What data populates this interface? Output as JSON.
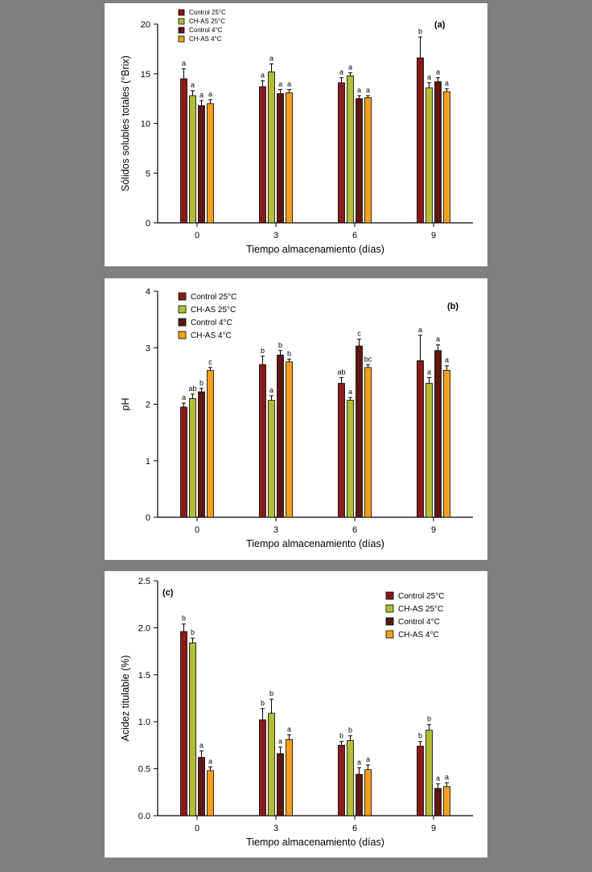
{
  "page": {
    "background": "#7f7f7f",
    "panel_background": "#ffffff"
  },
  "colors": {
    "control25": "#8B1A1A",
    "chas25": "#B5BC38",
    "control4": "#5E1712",
    "chas4": "#F4A01F"
  },
  "chart_data": [
    {
      "id": "a",
      "type": "bar",
      "panel_label": "(a)",
      "legend_position": "top-left",
      "title": "",
      "xlabel": "Tiempo almacenamiento (días)",
      "ylabel": "Sólidos solubles totales (°Brix)",
      "ylim": [
        0,
        20
      ],
      "yticks": [
        0,
        5,
        10,
        15,
        20
      ],
      "ytick_labels": [
        "0",
        "5",
        "10",
        "15",
        "20"
      ],
      "categories": [
        "0",
        "3",
        "6",
        "9"
      ],
      "grid": false,
      "series": [
        {
          "name": "Control 25°C",
          "color_key": "control25",
          "values": [
            14.5,
            13.7,
            14.1,
            16.6
          ],
          "errors": [
            1.0,
            0.6,
            0.5,
            2.1
          ],
          "letters": [
            "a",
            "a",
            "a",
            "b"
          ]
        },
        {
          "name": "CH-AS 25°C",
          "color_key": "chas25",
          "values": [
            12.8,
            15.2,
            14.8,
            13.6
          ],
          "errors": [
            0.5,
            0.8,
            0.3,
            0.5
          ],
          "letters": [
            "a",
            "a",
            "a",
            "a"
          ]
        },
        {
          "name": "Control 4°C",
          "color_key": "control4",
          "values": [
            11.8,
            13.0,
            12.5,
            14.2
          ],
          "errors": [
            0.5,
            0.4,
            0.3,
            0.4
          ],
          "letters": [
            "a",
            "a",
            "a",
            "a"
          ]
        },
        {
          "name": "CH-AS 4°C",
          "color_key": "chas4",
          "values": [
            12.0,
            13.1,
            12.6,
            13.2
          ],
          "errors": [
            0.4,
            0.3,
            0.2,
            0.3
          ],
          "letters": [
            "a",
            "a",
            "a",
            "a"
          ]
        }
      ]
    },
    {
      "id": "b",
      "type": "bar",
      "panel_label": "(b)",
      "legend_position": "top-left",
      "title": "",
      "xlabel": "Tiempo almacenamiento (días)",
      "ylabel": "pH",
      "ylim": [
        0,
        4
      ],
      "yticks": [
        0,
        1,
        2,
        3,
        4
      ],
      "ytick_labels": [
        "0",
        "1",
        "2",
        "3",
        "4"
      ],
      "categories": [
        "0",
        "3",
        "6",
        "9"
      ],
      "grid": false,
      "series": [
        {
          "name": "Control 25°C",
          "color_key": "control25",
          "values": [
            1.95,
            2.7,
            2.37,
            2.77
          ],
          "errors": [
            0.07,
            0.15,
            0.1,
            0.45
          ],
          "letters": [
            "a",
            "b",
            "ab",
            "a"
          ]
        },
        {
          "name": "CH-AS 25°C",
          "color_key": "chas25",
          "values": [
            2.1,
            2.07,
            2.07,
            2.37
          ],
          "errors": [
            0.08,
            0.08,
            0.05,
            0.1
          ],
          "letters": [
            "ab",
            "a",
            "a",
            "a"
          ]
        },
        {
          "name": "Control 4°C",
          "color_key": "control4",
          "values": [
            2.22,
            2.87,
            3.03,
            2.95
          ],
          "errors": [
            0.06,
            0.08,
            0.12,
            0.1
          ],
          "letters": [
            "b",
            "b",
            "c",
            "a"
          ]
        },
        {
          "name": "CH-AS 4°C",
          "color_key": "chas4",
          "values": [
            2.6,
            2.75,
            2.65,
            2.6
          ],
          "errors": [
            0.05,
            0.05,
            0.05,
            0.08
          ],
          "letters": [
            "c",
            "b",
            "bc",
            "a"
          ]
        }
      ]
    },
    {
      "id": "c",
      "type": "bar",
      "panel_label": "(c)",
      "legend_position": "top-right",
      "title": "",
      "xlabel": "Tiempo almacenamiento (días)",
      "ylabel": "Acidez titulable (%)",
      "ylim": [
        0,
        2.5
      ],
      "yticks": [
        0,
        0.5,
        1.0,
        1.5,
        2.0,
        2.5
      ],
      "ytick_labels": [
        "0.0",
        "0.5",
        "1.0",
        "1.5",
        "2.0",
        "2.5"
      ],
      "categories": [
        "0",
        "3",
        "6",
        "9"
      ],
      "grid": false,
      "series": [
        {
          "name": "Control 25°C",
          "color_key": "control25",
          "values": [
            1.96,
            1.02,
            0.75,
            0.74
          ],
          "errors": [
            0.08,
            0.12,
            0.04,
            0.05
          ],
          "letters": [
            "b",
            "b",
            "b",
            "b"
          ]
        },
        {
          "name": "CH-AS 25°C",
          "color_key": "chas25",
          "values": [
            1.84,
            1.09,
            0.8,
            0.91
          ],
          "errors": [
            0.05,
            0.15,
            0.05,
            0.06
          ],
          "letters": [
            "b",
            "b",
            "b",
            "b"
          ]
        },
        {
          "name": "Control 4°C",
          "color_key": "control4",
          "values": [
            0.62,
            0.66,
            0.44,
            0.29
          ],
          "errors": [
            0.07,
            0.07,
            0.07,
            0.05
          ],
          "letters": [
            "a",
            "a",
            "a",
            "a"
          ]
        },
        {
          "name": "CH-AS 4°C",
          "color_key": "chas4",
          "values": [
            0.48,
            0.81,
            0.49,
            0.31
          ],
          "errors": [
            0.04,
            0.05,
            0.05,
            0.04
          ],
          "letters": [
            "a",
            "a",
            "a",
            "a"
          ]
        }
      ]
    }
  ]
}
